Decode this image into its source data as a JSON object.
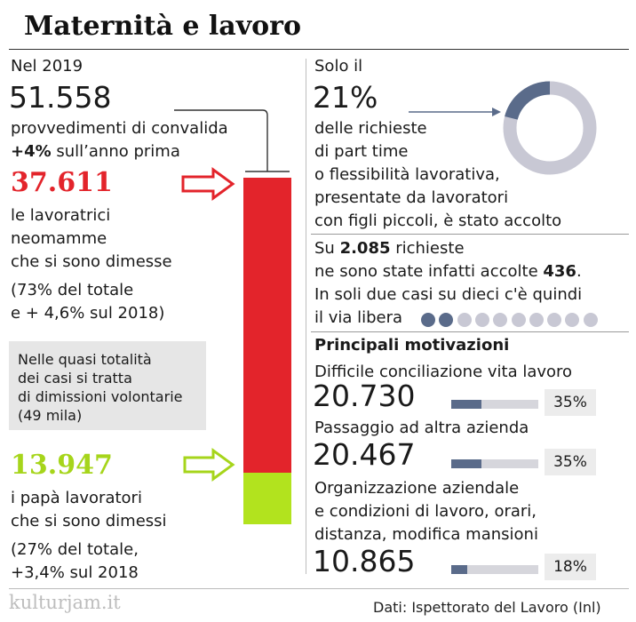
{
  "title": "Maternità e lavoro",
  "left": {
    "year_label": "Nel 2019",
    "total_value": "51.558",
    "total_desc": "provvedimenti di convalida",
    "change_bold": "+4%",
    "change_rest": " sull’anno prima",
    "mothers_value": "37.611",
    "mothers_lines": [
      "le lavoratrici",
      "neomamme",
      "che si sono dimesse"
    ],
    "mothers_note_lines": [
      "(73% del totale",
      "e + 4,6% sul 2018)"
    ],
    "box_lines": [
      "Nelle quasi totalità",
      "dei casi si tratta",
      "di dimissioni volontarie",
      "(49 mila)"
    ],
    "fathers_value": "13.947",
    "fathers_lines": [
      "i papà lavoratori",
      "che si sono dimessi"
    ],
    "fathers_note_lines": [
      "(27% del totale,",
      "+3,4% sul 2018"
    ]
  },
  "right": {
    "solo_label": "Solo il",
    "pct_value": "21%",
    "pct_lines": [
      "delle richieste",
      "di part time",
      "o flessibilità lavorativa,",
      "presentate da lavoratori",
      "con figli piccoli, è stato accolto"
    ],
    "req_line1_a": "Su ",
    "req_line1_b": "2.085",
    "req_line1_c": " richieste",
    "req_line2_a": "ne sono state infatti accolte ",
    "req_line2_b": "436",
    "req_line2_c": ".",
    "req_line3": "In soli due casi su dieci c'è quindi",
    "req_line4": "il via libera",
    "motiv_title": "Principali motivazioni",
    "motivations": [
      {
        "label_lines": [
          "Difficile conciliazione vita lavoro"
        ],
        "value": "20.730",
        "pct": "35%"
      },
      {
        "label_lines": [
          "Passaggio ad altra azienda"
        ],
        "value": "20.467",
        "pct": "35%"
      },
      {
        "label_lines": [
          "Organizzazione aziendale",
          "e condizioni di lavoro, orari,",
          "distanza, modifica mansioni"
        ],
        "value": "10.865",
        "pct": "18%"
      }
    ]
  },
  "watermark": "kulturjam.it",
  "source": "Dati: Ispettorato del Lavoro (Inl)",
  "colors": {
    "mothers": "#e3242b",
    "fathers": "#b2e31e",
    "dark": "#5a6b8a",
    "light": "#c8c8d4",
    "arrow_red": "#e3242b",
    "arrow_green": "#a6d51b"
  },
  "chart_data": [
    {
      "type": "bar",
      "series": [
        {
          "name": "le lavoratrici neomamme",
          "value": 37611
        },
        {
          "name": "i papà lavoratori",
          "value": 13947
        }
      ],
      "total": 51558
    },
    {
      "type": "pie",
      "values": [
        21,
        79
      ]
    },
    {
      "type": "bar",
      "values": [
        0.35,
        0.35,
        0.18
      ]
    }
  ]
}
